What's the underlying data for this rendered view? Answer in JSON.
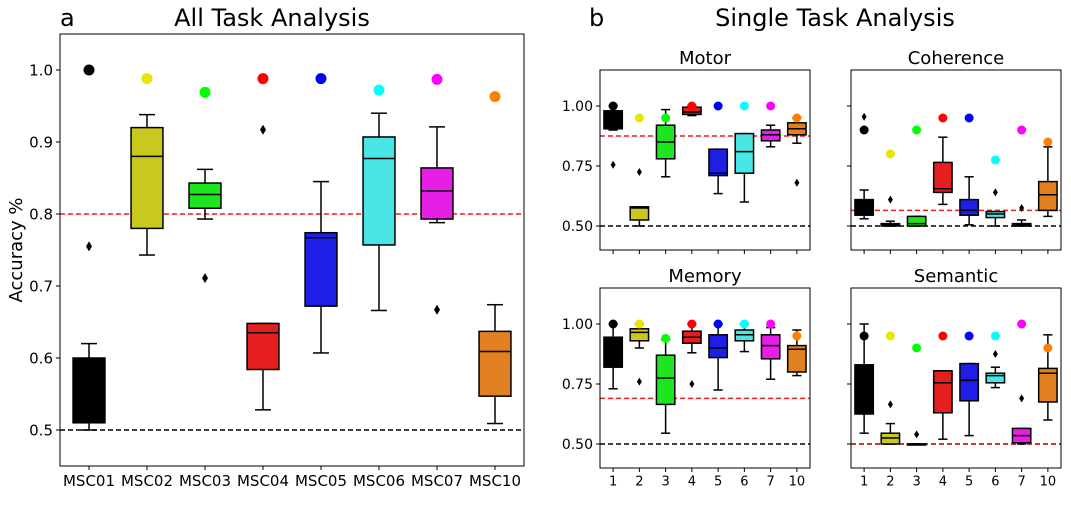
{
  "colors": {
    "subjects": [
      "#000000",
      "#c8c81e",
      "#1ee61e",
      "#e61e1e",
      "#1e1ee6",
      "#4ae6e6",
      "#e61ee6",
      "#e08020"
    ],
    "markers": [
      "#000000",
      "#e6e600",
      "#00ff00",
      "#ff0000",
      "#0000ff",
      "#00ffff",
      "#ff00ff",
      "#ff8000"
    ],
    "chance_line": "#000000",
    "mean_line": "#e61e1e"
  },
  "panel_letters": {
    "a": "a",
    "b": "b"
  },
  "chart_data": [
    {
      "type": "box",
      "panel": "a",
      "title": "All Task Analysis",
      "ylabel": "Accuracy %",
      "xlabel": "",
      "ylim": [
        0.45,
        1.05
      ],
      "yticks": [
        0.5,
        0.6,
        0.7,
        0.8,
        0.9,
        1.0
      ],
      "ytick_labels": [
        "0.5",
        "0.6",
        "0.7",
        "0.8",
        "0.9",
        "1.0"
      ],
      "categories": [
        "MSC01",
        "MSC02",
        "MSC03",
        "MSC04",
        "MSC05",
        "MSC06",
        "MSC07",
        "MSC10"
      ],
      "boxes": [
        {
          "whislo": 0.5,
          "q1": 0.51,
          "med": 0.51,
          "q3": 0.6,
          "whishi": 0.62,
          "fliers": [
            0.755
          ],
          "marker": 1.0
        },
        {
          "whislo": 0.743,
          "q1": 0.78,
          "med": 0.88,
          "q3": 0.92,
          "whishi": 0.938,
          "fliers": [],
          "marker": 0.988
        },
        {
          "whislo": 0.793,
          "q1": 0.808,
          "med": 0.827,
          "q3": 0.843,
          "whishi": 0.862,
          "fliers": [
            0.711
          ],
          "marker": 0.969
        },
        {
          "whislo": 0.528,
          "q1": 0.584,
          "med": 0.635,
          "q3": 0.648,
          "whishi": 0.648,
          "fliers": [
            0.917
          ],
          "marker": 0.988
        },
        {
          "whislo": 0.607,
          "q1": 0.672,
          "med": 0.767,
          "q3": 0.774,
          "whishi": 0.845,
          "fliers": [],
          "marker": 0.988
        },
        {
          "whislo": 0.666,
          "q1": 0.757,
          "med": 0.877,
          "q3": 0.907,
          "whishi": 0.94,
          "fliers": [],
          "marker": 0.972
        },
        {
          "whislo": 0.788,
          "q1": 0.793,
          "med": 0.832,
          "q3": 0.864,
          "whishi": 0.921,
          "fliers": [
            0.667
          ],
          "marker": 0.987
        },
        {
          "whislo": 0.509,
          "q1": 0.547,
          "med": 0.609,
          "q3": 0.637,
          "whishi": 0.674,
          "fliers": [],
          "marker": 0.963
        }
      ],
      "chance": 0.5,
      "threshold": 0.8
    }
  ],
  "panel_b": {
    "title": "Single Task Analysis",
    "ylim": [
      0.4,
      1.15
    ],
    "yticks": [
      0.5,
      0.75,
      1.0
    ],
    "ytick_labels": [
      "0.50",
      "0.75",
      "1.00"
    ],
    "categories": [
      "1",
      "2",
      "3",
      "4",
      "5",
      "6",
      "7",
      "10"
    ],
    "subplots": [
      {
        "title": "Motor",
        "chance": 0.5,
        "threshold": 0.875,
        "boxes": [
          {
            "whislo": 0.9,
            "q1": 0.905,
            "med": 0.92,
            "q3": 0.98,
            "whishi": 1.0,
            "fliers": [
              0.755
            ],
            "marker": 1.0
          },
          {
            "whislo": 0.5,
            "q1": 0.525,
            "med": 0.575,
            "q3": 0.58,
            "whishi": 0.58,
            "fliers": [
              0.725
            ],
            "marker": 0.95
          },
          {
            "whislo": 0.705,
            "q1": 0.78,
            "med": 0.85,
            "q3": 0.92,
            "whishi": 0.985,
            "fliers": [],
            "marker": 0.95
          },
          {
            "whislo": 0.96,
            "q1": 0.965,
            "med": 0.975,
            "q3": 0.995,
            "whishi": 1.0,
            "fliers": [],
            "marker": 1.0
          },
          {
            "whislo": 0.635,
            "q1": 0.71,
            "med": 0.72,
            "q3": 0.82,
            "whishi": 0.82,
            "fliers": [],
            "marker": 1.0
          },
          {
            "whislo": 0.6,
            "q1": 0.72,
            "med": 0.81,
            "q3": 0.885,
            "whishi": 0.885,
            "fliers": [],
            "marker": 1.0
          },
          {
            "whislo": 0.83,
            "q1": 0.855,
            "med": 0.88,
            "q3": 0.9,
            "whishi": 0.92,
            "fliers": [],
            "marker": 1.0
          },
          {
            "whislo": 0.845,
            "q1": 0.88,
            "med": 0.905,
            "q3": 0.93,
            "whishi": 0.95,
            "fliers": [
              0.68
            ],
            "marker": 0.95
          }
        ]
      },
      {
        "title": "Coherence",
        "chance": 0.5,
        "threshold": 0.565,
        "boxes": [
          {
            "whislo": 0.53,
            "q1": 0.545,
            "med": 0.575,
            "q3": 0.61,
            "whishi": 0.65,
            "fliers": [
              0.955
            ],
            "marker": 0.9
          },
          {
            "whislo": 0.5,
            "q1": 0.5,
            "med": 0.505,
            "q3": 0.51,
            "whishi": 0.52,
            "fliers": [
              0.61
            ],
            "marker": 0.8
          },
          {
            "whislo": 0.5,
            "q1": 0.5,
            "med": 0.51,
            "q3": 0.54,
            "whishi": 0.54,
            "fliers": [],
            "marker": 0.9
          },
          {
            "whislo": 0.59,
            "q1": 0.64,
            "med": 0.655,
            "q3": 0.765,
            "whishi": 0.87,
            "fliers": [],
            "marker": 0.95
          },
          {
            "whislo": 0.505,
            "q1": 0.545,
            "med": 0.565,
            "q3": 0.61,
            "whishi": 0.705,
            "fliers": [],
            "marker": 0.95
          },
          {
            "whislo": 0.5,
            "q1": 0.535,
            "med": 0.55,
            "q3": 0.56,
            "whishi": 0.56,
            "fliers": [
              0.64
            ],
            "marker": 0.775
          },
          {
            "whislo": 0.5,
            "q1": 0.5,
            "med": 0.505,
            "q3": 0.51,
            "whishi": 0.525,
            "fliers": [
              0.575
            ],
            "marker": 0.9
          },
          {
            "whislo": 0.54,
            "q1": 0.565,
            "med": 0.63,
            "q3": 0.685,
            "whishi": 0.83,
            "fliers": [],
            "marker": 0.85
          }
        ]
      },
      {
        "title": "Memory",
        "chance": 0.5,
        "threshold": 0.69,
        "boxes": [
          {
            "whislo": 0.73,
            "q1": 0.82,
            "med": 0.87,
            "q3": 0.945,
            "whishi": 1.0,
            "fliers": [],
            "marker": 1.0
          },
          {
            "whislo": 0.9,
            "q1": 0.93,
            "med": 0.965,
            "q3": 0.98,
            "whishi": 1.0,
            "fliers": [
              0.76
            ],
            "marker": 1.0
          },
          {
            "whislo": 0.545,
            "q1": 0.665,
            "med": 0.775,
            "q3": 0.87,
            "whishi": 0.935,
            "fliers": [],
            "marker": 0.94
          },
          {
            "whislo": 0.88,
            "q1": 0.92,
            "med": 0.945,
            "q3": 0.97,
            "whishi": 1.0,
            "fliers": [
              0.75
            ],
            "marker": 1.0
          },
          {
            "whislo": 0.725,
            "q1": 0.86,
            "med": 0.9,
            "q3": 0.955,
            "whishi": 1.0,
            "fliers": [],
            "marker": 1.0
          },
          {
            "whislo": 0.885,
            "q1": 0.93,
            "med": 0.955,
            "q3": 0.975,
            "whishi": 1.0,
            "fliers": [],
            "marker": 1.0
          },
          {
            "whislo": 0.77,
            "q1": 0.855,
            "med": 0.91,
            "q3": 0.955,
            "whishi": 0.985,
            "fliers": [],
            "marker": 1.0
          },
          {
            "whislo": 0.785,
            "q1": 0.8,
            "med": 0.895,
            "q3": 0.91,
            "whishi": 0.975,
            "fliers": [],
            "marker": 0.95
          }
        ]
      },
      {
        "title": "Semantic",
        "chance": 0.5,
        "threshold": 0.5,
        "boxes": [
          {
            "whislo": 0.545,
            "q1": 0.625,
            "med": 0.72,
            "q3": 0.83,
            "whishi": 1.0,
            "fliers": [],
            "marker": 0.95
          },
          {
            "whislo": 0.5,
            "q1": 0.5,
            "med": 0.525,
            "q3": 0.545,
            "whishi": 0.585,
            "fliers": [
              0.665
            ],
            "marker": 0.95
          },
          {
            "whislo": 0.5,
            "q1": 0.5,
            "med": 0.5,
            "q3": 0.5,
            "whishi": 0.5,
            "fliers": [
              0.54
            ],
            "marker": 0.9
          },
          {
            "whislo": 0.52,
            "q1": 0.63,
            "med": 0.755,
            "q3": 0.805,
            "whishi": 0.805,
            "fliers": [],
            "marker": 0.95
          },
          {
            "whislo": 0.535,
            "q1": 0.68,
            "med": 0.765,
            "q3": 0.835,
            "whishi": 0.835,
            "fliers": [],
            "marker": 0.95
          },
          {
            "whislo": 0.735,
            "q1": 0.755,
            "med": 0.785,
            "q3": 0.795,
            "whishi": 0.82,
            "fliers": [
              0.875
            ],
            "marker": 0.95
          },
          {
            "whislo": 0.5,
            "q1": 0.505,
            "med": 0.535,
            "q3": 0.565,
            "whishi": 0.565,
            "fliers": [
              0.69
            ],
            "marker": 1.0
          },
          {
            "whislo": 0.6,
            "q1": 0.675,
            "med": 0.795,
            "q3": 0.815,
            "whishi": 0.955,
            "fliers": [],
            "marker": 0.9
          }
        ]
      }
    ]
  }
}
